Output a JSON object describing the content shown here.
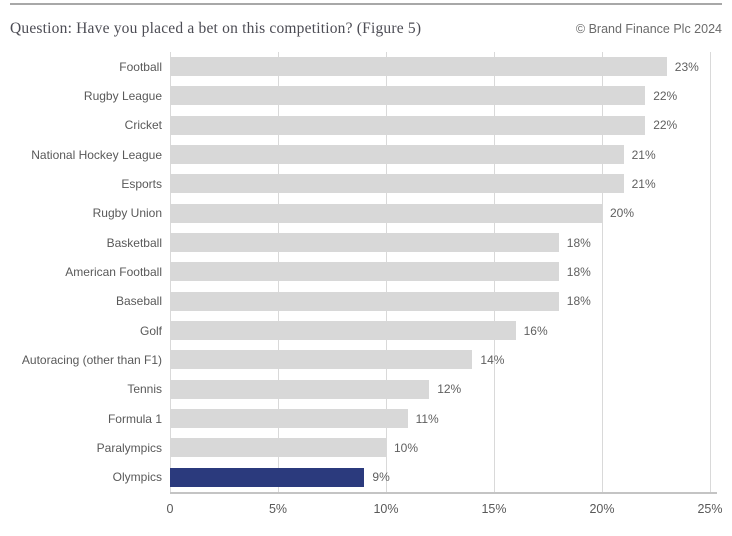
{
  "header": {
    "title": "Question: Have you placed a bet on this competition? (Figure 5)",
    "copyright": "© Brand Finance Plc 2024"
  },
  "chart_data": {
    "type": "bar",
    "orientation": "horizontal",
    "title": "Question: Have you placed a bet on this competition? (Figure 5)",
    "categories": [
      "Football",
      "Rugby League",
      "Cricket",
      "National Hockey League",
      "Esports",
      "Rugby Union",
      "Basketball",
      "American Football",
      "Baseball",
      "Golf",
      "Autoracing (other than F1)",
      "Tennis",
      "Formula 1",
      "Paralympics",
      "Olympics"
    ],
    "values": [
      23,
      22,
      22,
      21,
      21,
      20,
      18,
      18,
      18,
      16,
      14,
      12,
      11,
      10,
      9
    ],
    "value_labels": [
      "23%",
      "22%",
      "22%",
      "21%",
      "21%",
      "20%",
      "18%",
      "18%",
      "18%",
      "16%",
      "14%",
      "12%",
      "11%",
      "10%",
      "9%"
    ],
    "xlim": [
      0,
      25
    ],
    "x_tick_values": [
      0,
      5,
      10,
      15,
      20,
      25
    ],
    "x_tick_labels": [
      "0",
      "5%",
      "10%",
      "15%",
      "20%",
      "25%"
    ],
    "grid": true,
    "legend": false,
    "highlight_category": "Olympics",
    "colors": {
      "bar": "#d8d8d8",
      "highlight": "#2b3a7d",
      "gridline": "#d9d9d9",
      "axis_line": "#c4c4c4",
      "category_label": "#595959",
      "value_label": "#5f5f5f"
    }
  }
}
